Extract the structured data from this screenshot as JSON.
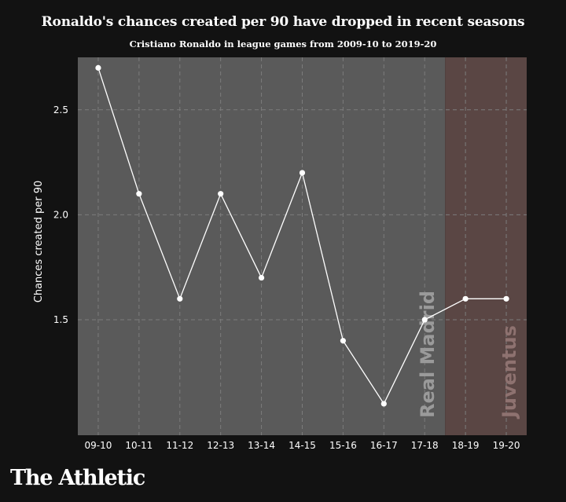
{
  "branding": {
    "logo": "The Athletic"
  },
  "chart_data": {
    "type": "line",
    "title": "Ronaldo's chances created per 90 have dropped in recent seasons",
    "subtitle": "Cristiano Ronaldo in league games from 2009-10 to 2019-20",
    "ylabel": "Chances created per 90",
    "xlabel": "",
    "categories": [
      "09-10",
      "10-11",
      "11-12",
      "12-13",
      "13-14",
      "14-15",
      "15-16",
      "16-17",
      "17-18",
      "18-19",
      "19-20"
    ],
    "series": [
      {
        "values": [
          2.7,
          2.1,
          1.6,
          2.1,
          1.7,
          2.2,
          1.4,
          1.1,
          1.5,
          1.6,
          1.6
        ]
      }
    ],
    "ylim": [
      0.95,
      2.75
    ],
    "yticks": [
      "1.5",
      "2.0",
      "2.5"
    ],
    "grid": true,
    "regions": [
      {
        "label": "Real Madrid",
        "color": "#5a5a5a",
        "start": "09-10",
        "end": "17-18"
      },
      {
        "label": "Juventus",
        "color": "#5a4644",
        "start": "18-19",
        "end": "19-20"
      }
    ],
    "colors": {
      "line": "#ffffff",
      "marker": "#ffffff",
      "grid": "#7c7c7c",
      "background": "#121212"
    }
  }
}
